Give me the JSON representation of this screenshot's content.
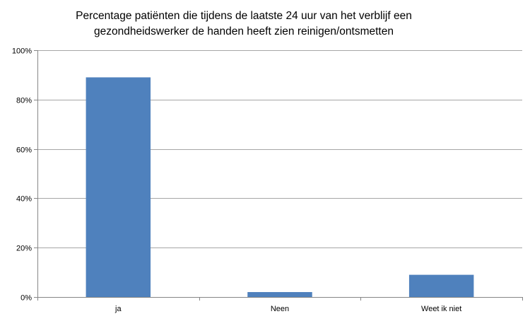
{
  "chart_data": {
    "type": "bar",
    "title_lines": [
      "Percentage patiënten die tijdens de laatste 24 uur van het verblijf een",
      "gezondheidswerker de handen heeft zien reinigen/ontsmetten"
    ],
    "xlabel": "",
    "ylabel": "",
    "categories": [
      "ja",
      "Neen",
      "Weet ik niet"
    ],
    "values": [
      89,
      2,
      9
    ],
    "value_unit": "percent",
    "ylim": [
      0,
      100
    ],
    "yticks": [
      0,
      20,
      40,
      60,
      80,
      100
    ],
    "ytick_labels": [
      "0%",
      "20%",
      "40%",
      "60%",
      "80%",
      "100%"
    ],
    "grid": "horizontal",
    "legend": "none",
    "bar_color": "#4f81bd",
    "grid_color": "#a6a6a6",
    "axis_color": "#868686"
  }
}
